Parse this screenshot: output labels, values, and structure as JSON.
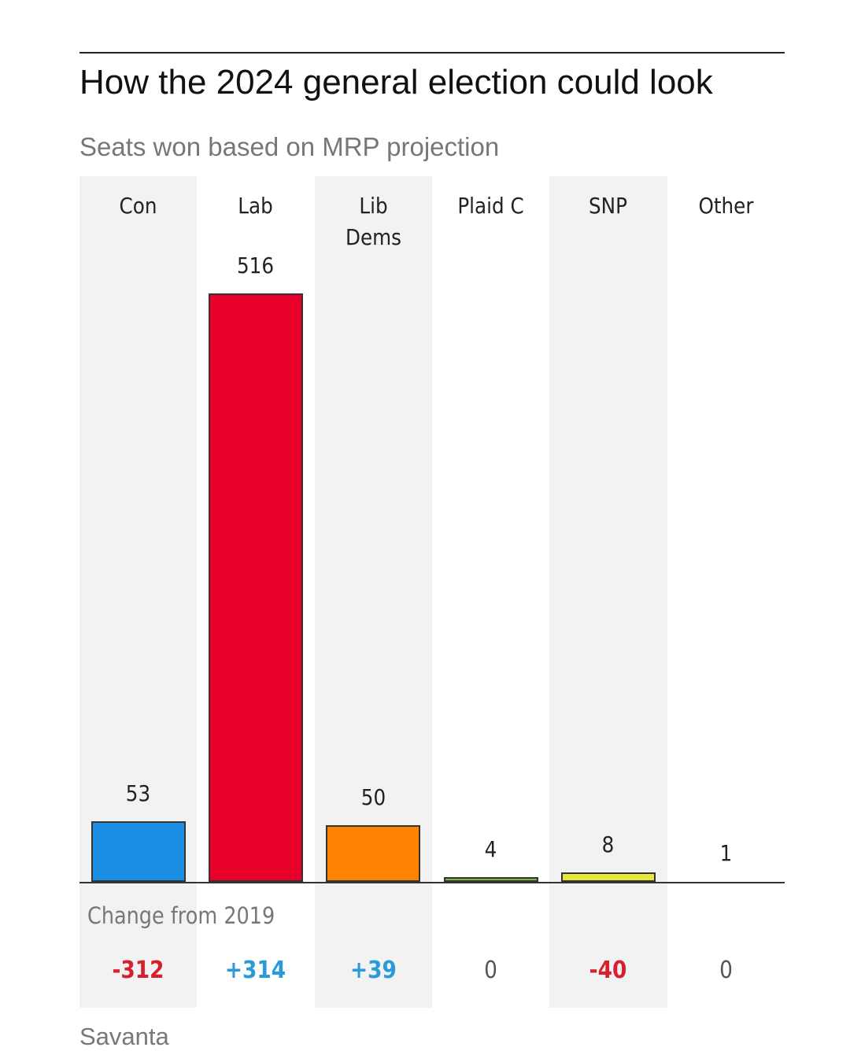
{
  "title": "How the 2024 general election could look",
  "subtitle": "Seats won based on MRP projection",
  "source": "Savanta",
  "colors": {
    "shaded_column": "#f2f2f2",
    "negative_change": "#d6202e",
    "positive_change": "#2a9ad8",
    "neutral_change": "#555555"
  },
  "chart_data": {
    "type": "bar",
    "title": "How the 2024 general election could look",
    "subtitle": "Seats won based on MRP projection",
    "categories": [
      "Con",
      "Lab",
      "Lib\nDems",
      "Plaid C",
      "SNP",
      "Other"
    ],
    "values": [
      53,
      516,
      50,
      4,
      8,
      1
    ],
    "value_labels": [
      "53",
      "516",
      "50",
      "4",
      "8",
      "1"
    ],
    "bar_colors": [
      "#1a8fe3",
      "#e8002a",
      "#ff8200",
      "#7ab83a",
      "#e8e83a",
      null
    ],
    "ylim": [
      0,
      516
    ],
    "grid": false,
    "legend": "none",
    "change_heading": "Change from 2019",
    "changes": [
      "-312",
      "+314",
      "+39",
      "0",
      "-40",
      "0"
    ],
    "change_direction": [
      "negative",
      "positive",
      "positive",
      "neutral",
      "negative",
      "neutral"
    ],
    "change_bold": [
      true,
      true,
      true,
      false,
      true,
      false
    ]
  }
}
